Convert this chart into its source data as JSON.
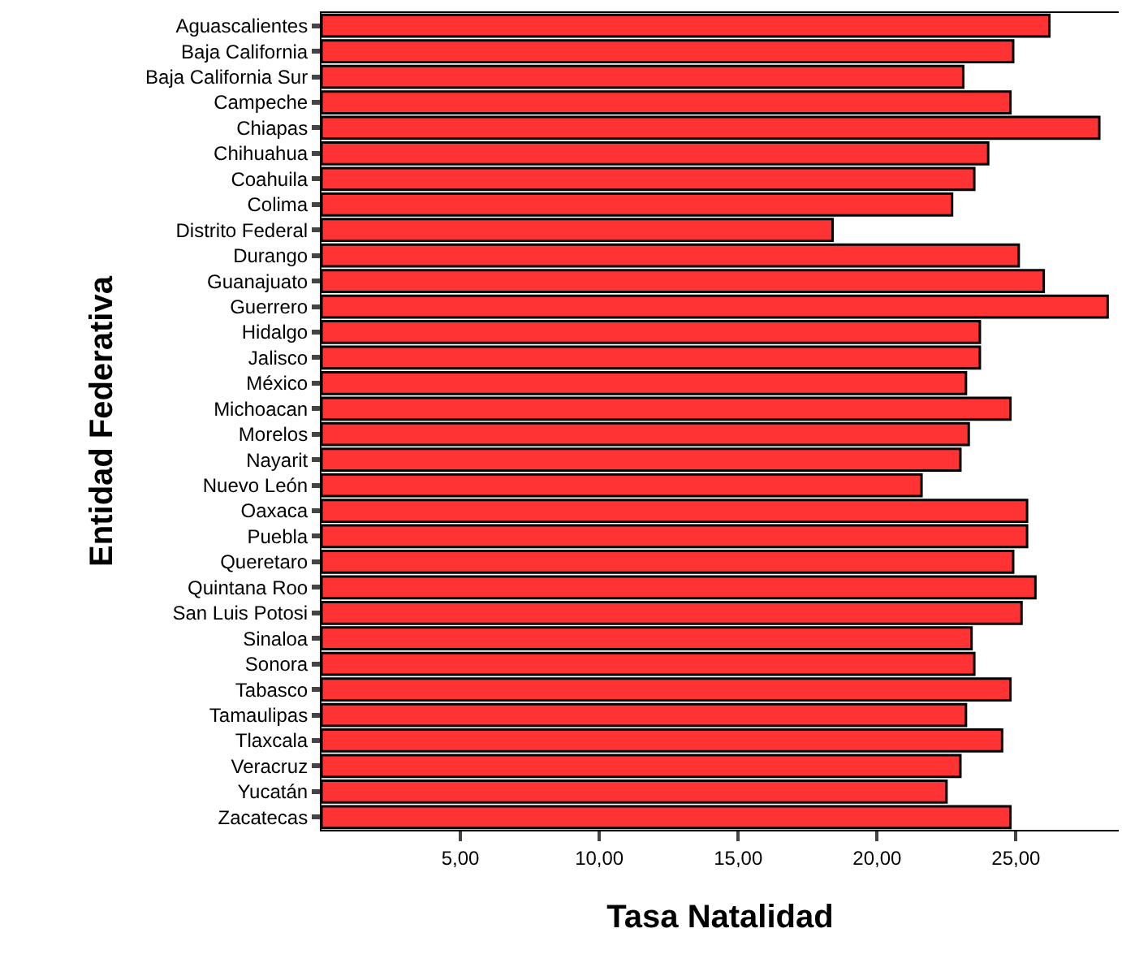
{
  "chart_data": {
    "type": "bar",
    "orientation": "horizontal",
    "xlabel": "Tasa Natalidad",
    "ylabel": "Entidad Federativa",
    "categories": [
      "Aguascalientes",
      "Baja California",
      "Baja California Sur",
      "Campeche",
      "Chiapas",
      "Chihuahua",
      "Coahuila",
      "Colima",
      "Distrito Federal",
      "Durango",
      "Guanajuato",
      "Guerrero",
      "Hidalgo",
      "Jalisco",
      "México",
      "Michoacan",
      "Morelos",
      "Nayarit",
      "Nuevo León",
      "Oaxaca",
      "Puebla",
      "Queretaro",
      "Quintana Roo",
      "San Luis Potosi",
      "Sinaloa",
      "Sonora",
      "Tabasco",
      "Tamaulipas",
      "Tlaxcala",
      "Veracruz",
      "Yucatán",
      "Zacatecas"
    ],
    "values": [
      26.2,
      24.9,
      23.1,
      24.8,
      28.0,
      24.0,
      23.5,
      22.7,
      18.4,
      25.1,
      26.0,
      28.3,
      23.7,
      23.7,
      23.2,
      24.8,
      23.3,
      23.0,
      21.6,
      25.4,
      25.4,
      24.9,
      25.7,
      25.2,
      23.4,
      23.5,
      24.8,
      23.2,
      24.5,
      23.0,
      22.5,
      24.8
    ],
    "color": "#ff3333",
    "xlim": [
      0,
      28.7
    ],
    "xticks": [
      {
        "value": 5,
        "label": "5,00"
      },
      {
        "value": 10,
        "label": "10,00"
      },
      {
        "value": 15,
        "label": "15,00"
      },
      {
        "value": 20,
        "label": "20,00"
      },
      {
        "value": 25,
        "label": "25,00"
      }
    ]
  }
}
